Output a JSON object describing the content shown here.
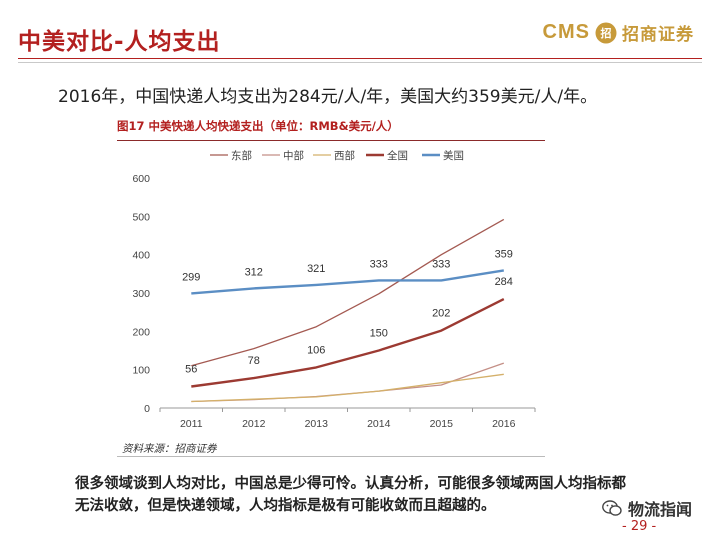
{
  "slide": {
    "title": "中美对比-人均支出",
    "headline": "2016年，中国快递人均支出为284元/人/年，美国大约359美元/人/年。",
    "body": "很多领域谈到人均对比，中国总是少得可怜。认真分析，可能很多领域两国人均指标都无法收敛，但是快递领域，人均指标是极有可能收敛而且超越的。",
    "page_number": "- 29 -"
  },
  "logo": {
    "cms": "CMS",
    "emblem_text": "招",
    "name": "招商证券",
    "color": "#c79a3a"
  },
  "watermark": {
    "icon": "wechat-icon",
    "text": "物流指闻"
  },
  "figure": {
    "title": "图17  中美快递人均快递支出（单位：RMB&美元/人）",
    "source": "资料来源：招商证券"
  },
  "chart_data": {
    "type": "line",
    "x": [
      "2011",
      "2012",
      "2013",
      "2014",
      "2015",
      "2016"
    ],
    "ylim": [
      0,
      600
    ],
    "yticks": [
      0,
      100,
      200,
      300,
      400,
      500,
      600
    ],
    "legend_position": "top",
    "grid": false,
    "series": [
      {
        "name": "东部",
        "color": "#a45a52",
        "width": 1.3,
        "values": [
          110,
          155,
          212,
          298,
          400,
          492
        ],
        "labels": false
      },
      {
        "name": "中部",
        "color": "#c48f86",
        "width": 1.3,
        "values": [
          17,
          22,
          30,
          44,
          60,
          117
        ],
        "labels": false
      },
      {
        "name": "西部",
        "color": "#d4b06a",
        "width": 1.3,
        "values": [
          17,
          23,
          29,
          44,
          66,
          88
        ],
        "labels": false
      },
      {
        "name": "全国",
        "color": "#9c3a32",
        "width": 2.4,
        "values": [
          56,
          78,
          106,
          150,
          202,
          284
        ],
        "labels": true
      },
      {
        "name": "美国",
        "color": "#5b8ec4",
        "width": 2.4,
        "values": [
          299,
          312,
          321,
          333,
          333,
          359
        ],
        "labels": true
      }
    ]
  }
}
